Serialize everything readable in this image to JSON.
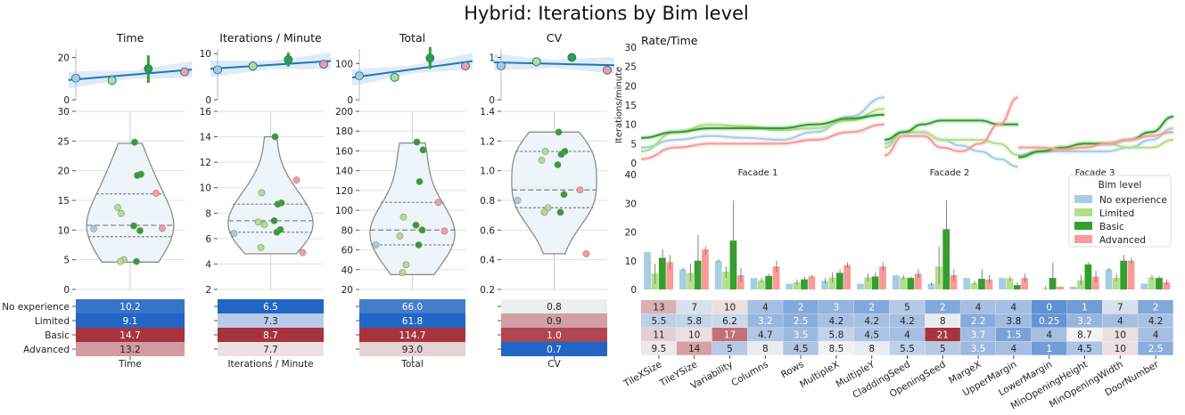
{
  "title": "Hybrid: Iterations by Bim level",
  "colors": {
    "no_experience": "#a6cee3",
    "limited": "#b2df8a",
    "basic": "#33a02c",
    "advanced": "#fb9a99",
    "trend": "#1f78b4",
    "band": "#dce9f5",
    "violin_fill": "#eef5fa",
    "violin_edge": "#8c8c8c",
    "heat_low": "#2166c4",
    "heat_mid": "#f4f4f4",
    "heat_high": "#a7333f"
  },
  "levels": [
    "No experience",
    "Limited",
    "Basic",
    "Advanced"
  ],
  "panels": [
    {
      "title": "Time",
      "xlabel": "Time",
      "trend_yticks": [
        "0",
        "20"
      ],
      "trend_ylim": [
        0,
        24
      ],
      "trend_means": [
        10.2,
        9.1,
        14.7,
        13.2
      ],
      "trend_ci": [
        [
          9.5,
          10.9
        ],
        [
          7,
          12
        ],
        [
          8,
          21
        ],
        [
          12.5,
          13.9
        ]
      ],
      "violin_ylim": [
        0,
        30
      ],
      "violin_yticks": [
        "0",
        "5",
        "10",
        "15",
        "20",
        "25",
        "30"
      ],
      "points": [
        {
          "level": 0,
          "y": 10.2
        },
        {
          "level": 1,
          "y": 12.8
        },
        {
          "level": 1,
          "y": 13.8
        },
        {
          "level": 1,
          "y": 5.0
        },
        {
          "level": 1,
          "y": 4.7
        },
        {
          "level": 2,
          "y": 24.8
        },
        {
          "level": 2,
          "y": 19.4
        },
        {
          "level": 2,
          "y": 19.2
        },
        {
          "level": 2,
          "y": 10.7
        },
        {
          "level": 2,
          "y": 9.9
        },
        {
          "level": 2,
          "y": 4.7
        },
        {
          "level": 3,
          "y": 16.2
        },
        {
          "level": 3,
          "y": 10.3
        }
      ],
      "violin_range": [
        4.6,
        24.6
      ],
      "quartiles": [
        8.9,
        10.8,
        16.1
      ],
      "heat_values": [
        "10.2",
        "9.1",
        "14.7",
        "13.2"
      ],
      "heat_levels": [
        0.05,
        0.0,
        1.0,
        0.73
      ]
    },
    {
      "title": "Iterations / Minute",
      "xlabel": "Iterations / Minute",
      "trend_yticks": [
        "0",
        "10"
      ],
      "trend_ylim": [
        0,
        11
      ],
      "trend_means": [
        6.5,
        7.3,
        8.7,
        7.7
      ],
      "trend_ci": [
        [
          6.1,
          6.9
        ],
        [
          6.2,
          8.4
        ],
        [
          7.2,
          10.2
        ],
        [
          7.2,
          8.2
        ]
      ],
      "violin_ylim": [
        2,
        16
      ],
      "violin_yticks": [
        "2",
        "4",
        "6",
        "8",
        "10",
        "12",
        "14",
        "16"
      ],
      "points": [
        {
          "level": 0,
          "y": 6.4
        },
        {
          "level": 1,
          "y": 9.6
        },
        {
          "level": 1,
          "y": 7.3
        },
        {
          "level": 1,
          "y": 7.1
        },
        {
          "level": 1,
          "y": 5.3
        },
        {
          "level": 2,
          "y": 14.0
        },
        {
          "level": 2,
          "y": 8.8
        },
        {
          "level": 2,
          "y": 8.7
        },
        {
          "level": 2,
          "y": 7.4
        },
        {
          "level": 2,
          "y": 6.7
        },
        {
          "level": 2,
          "y": 6.5
        },
        {
          "level": 3,
          "y": 10.6
        },
        {
          "level": 3,
          "y": 4.9
        }
      ],
      "violin_range": [
        4.8,
        14.0
      ],
      "quartiles": [
        6.5,
        7.4,
        8.7
      ],
      "heat_values": [
        "6.5",
        "7.3",
        "8.7",
        "7.7"
      ],
      "heat_levels": [
        0.0,
        0.36,
        1.0,
        0.55
      ]
    },
    {
      "title": "Total",
      "xlabel": "Total",
      "trend_yticks": [
        "0",
        "100"
      ],
      "trend_ylim": [
        0,
        140
      ],
      "trend_means": [
        66.0,
        61.8,
        114.7,
        93.0
      ],
      "trend_ci": [
        [
          60,
          72
        ],
        [
          50,
          75
        ],
        [
          85,
          145
        ],
        [
          88,
          98
        ]
      ],
      "violin_ylim": [
        20,
        200
      ],
      "violin_yticks": [
        "20",
        "40",
        "60",
        "80",
        "100",
        "120",
        "140",
        "160",
        "180",
        "200"
      ],
      "points": [
        {
          "level": 0,
          "y": 65
        },
        {
          "level": 1,
          "y": 93
        },
        {
          "level": 1,
          "y": 74
        },
        {
          "level": 1,
          "y": 45
        },
        {
          "level": 1,
          "y": 37
        },
        {
          "level": 2,
          "y": 169
        },
        {
          "level": 2,
          "y": 161
        },
        {
          "level": 2,
          "y": 129
        },
        {
          "level": 2,
          "y": 85
        },
        {
          "level": 2,
          "y": 80
        },
        {
          "level": 2,
          "y": 65
        },
        {
          "level": 3,
          "y": 108
        },
        {
          "level": 3,
          "y": 79
        }
      ],
      "violin_range": [
        35,
        168
      ],
      "quartiles": [
        65,
        80,
        108
      ],
      "heat_values": [
        "66.0",
        "61.8",
        "114.7",
        "93.0"
      ],
      "heat_levels": [
        0.08,
        0.0,
        1.0,
        0.59
      ]
    },
    {
      "title": "CV",
      "xlabel": "CV",
      "trend_yticks": [
        "0",
        "1"
      ],
      "trend_ylim": [
        0,
        1.2
      ],
      "trend_means": [
        0.8,
        0.9,
        1.0,
        0.7
      ],
      "trend_ci": [
        [
          0.75,
          0.85
        ],
        [
          0.84,
          0.96
        ],
        [
          0.92,
          1.08
        ],
        [
          0.65,
          0.75
        ]
      ],
      "violin_ylim": [
        0.2,
        1.4
      ],
      "violin_yticks": [
        "0.2",
        "0.4",
        "0.6",
        "0.8",
        "1.0",
        "1.2",
        "1.4"
      ],
      "points": [
        {
          "level": 0,
          "y": 0.8
        },
        {
          "level": 1,
          "y": 1.13
        },
        {
          "level": 1,
          "y": 1.07
        },
        {
          "level": 1,
          "y": 0.75
        },
        {
          "level": 1,
          "y": 0.72
        },
        {
          "level": 2,
          "y": 1.26
        },
        {
          "level": 2,
          "y": 1.13
        },
        {
          "level": 2,
          "y": 1.11
        },
        {
          "level": 2,
          "y": 1.04
        },
        {
          "level": 2,
          "y": 0.84
        },
        {
          "level": 2,
          "y": 0.72
        },
        {
          "level": 3,
          "y": 0.87
        },
        {
          "level": 3,
          "y": 0.44
        }
      ],
      "violin_range": [
        0.44,
        1.26
      ],
      "quartiles": [
        0.75,
        0.87,
        1.13
      ],
      "heat_values": [
        "0.8",
        "0.9",
        "1.0",
        "0.7"
      ],
      "heat_levels": [
        0.48,
        0.72,
        0.95,
        0.0
      ]
    }
  ],
  "rate_chart": {
    "title": "Rate/Time",
    "ylabel": "Iterations/minute",
    "ylim": [
      0,
      30
    ],
    "yticks": [
      "0",
      "5",
      "10",
      "15",
      "20",
      "25",
      "30"
    ],
    "facets": [
      "Facade 1",
      "Facade 2",
      "Facade 3"
    ],
    "curves": [
      [
        {
          "level": 0,
          "y": [
            4,
            6,
            7,
            6.5,
            6,
            8,
            12,
            17
          ]
        },
        {
          "level": 1,
          "y": [
            3,
            8,
            10,
            9.5,
            8.5,
            9,
            11,
            14
          ]
        },
        {
          "level": 2,
          "y": [
            6.5,
            8,
            9,
            9,
            9,
            10,
            11.5,
            12.5
          ]
        },
        {
          "level": 3,
          "y": [
            1,
            4,
            5,
            5,
            5,
            6,
            8,
            10
          ]
        }
      ],
      [
        {
          "level": 0,
          "y": [
            5,
            8,
            8,
            6,
            4.5,
            3,
            1,
            -1
          ]
        },
        {
          "level": 1,
          "y": [
            4,
            8,
            8,
            6,
            6,
            6,
            5,
            2
          ]
        },
        {
          "level": 2,
          "y": [
            6,
            8,
            10,
            11,
            11,
            11,
            10,
            10
          ]
        },
        {
          "level": 3,
          "y": [
            2,
            7,
            7,
            4,
            3,
            5,
            10,
            17
          ]
        }
      ],
      [
        {
          "level": 0,
          "y": [
            2,
            3,
            3,
            3,
            3,
            4,
            6,
            9
          ]
        },
        {
          "level": 1,
          "y": [
            1.5,
            3,
            4,
            5,
            5,
            4,
            4,
            6
          ]
        },
        {
          "level": 2,
          "y": [
            1.5,
            3,
            4,
            5,
            5,
            6,
            8,
            12
          ]
        },
        {
          "level": 3,
          "y": [
            4,
            4,
            3.5,
            4,
            5,
            6,
            7,
            8
          ]
        }
      ]
    ]
  },
  "param_chart": {
    "ylim": [
      0,
      40
    ],
    "yticks": [
      "0",
      "10",
      "20",
      "30",
      "40"
    ],
    "legend_title": "Bim level",
    "legend_position": "right",
    "categories": [
      "TileXSize",
      "TileYSize",
      "Variability",
      "Columns",
      "Rows",
      "MultipleX",
      "MultipleY",
      "CladdingSeed",
      "OpeningSeed",
      "MargeX",
      "UpperMargin",
      "LowerMargin",
      "MinOpeningHeight",
      "MinOpeningWidth",
      "DoorNumber"
    ],
    "series": [
      {
        "name": "No experience",
        "values": [
          13,
          7,
          10,
          4,
          2,
          3,
          2,
          5,
          2,
          4,
          4,
          0,
          1,
          7,
          2
        ]
      },
      {
        "name": "Limited",
        "values": [
          5.5,
          5.8,
          6.2,
          3.2,
          2.5,
          4.2,
          4.2,
          4.2,
          8,
          2.2,
          3.8,
          0.25,
          3.2,
          4,
          4.2
        ]
      },
      {
        "name": "Basic",
        "values": [
          11,
          10,
          17,
          4.7,
          3.5,
          5.8,
          4.5,
          4,
          21,
          3.7,
          1.5,
          4,
          8.7,
          10,
          4
        ]
      },
      {
        "name": "Advanced",
        "values": [
          9.5,
          14,
          5,
          8,
          4.5,
          8.5,
          8,
          5.5,
          5,
          3.5,
          4,
          1,
          4.5,
          10,
          2.5
        ]
      }
    ],
    "error_top": [
      [
        13,
        7.5,
        10.5,
        4,
        2,
        4,
        2,
        5,
        2.5,
        4,
        4,
        0,
        1,
        7.5,
        2
      ],
      [
        9,
        9,
        8,
        4,
        3.5,
        6,
        5.5,
        5,
        15,
        3,
        4.5,
        1,
        5,
        5.5,
        5
      ],
      [
        14,
        19,
        31,
        5.5,
        4.5,
        7,
        6,
        4.5,
        31,
        7,
        2.5,
        9.5,
        9.5,
        12,
        4.5
      ],
      [
        12,
        15,
        7.5,
        10,
        5,
        9.5,
        9.5,
        7,
        7,
        5,
        5.5,
        1,
        6.5,
        11,
        3.5
      ]
    ],
    "error_bottom": [
      [
        13,
        6.5,
        9.5,
        4,
        2,
        2,
        2,
        5,
        1.5,
        4,
        4,
        0,
        1,
        6.5,
        2
      ],
      [
        2,
        3,
        4,
        2.5,
        1.5,
        2.5,
        3,
        3.5,
        2,
        1.5,
        3,
        0,
        1.5,
        3,
        3.5
      ],
      [
        8,
        3,
        6,
        4,
        2.5,
        4.5,
        3,
        3.5,
        14,
        1,
        0.5,
        0,
        8,
        8,
        3.5
      ],
      [
        7,
        12,
        2.5,
        6,
        4,
        7.5,
        6.5,
        4,
        3,
        2,
        2.5,
        1,
        2.5,
        9,
        1.5
      ]
    ],
    "heat_rows": [
      [
        "13",
        "7",
        "10",
        "4",
        "2",
        "3",
        "2",
        "5",
        "2",
        "4",
        "4",
        "0",
        "1",
        "7",
        "2"
      ],
      [
        "5.5",
        "5.8",
        "6.2",
        "3.2",
        "2.5",
        "4.2",
        "4.2",
        "4.2",
        "8",
        "2.2",
        "3.8",
        "0.25",
        "3.2",
        "4",
        "4.2"
      ],
      [
        "11",
        "10",
        "17",
        "4.7",
        "3.5",
        "5.8",
        "4.5",
        "4",
        "21",
        "3.7",
        "1.5",
        "4",
        "8.7",
        "10",
        "4"
      ],
      [
        "9.5",
        "14",
        "5",
        "8",
        "4.5",
        "8.5",
        "8",
        "5.5",
        "5",
        "3.5",
        "4",
        "1",
        "4.5",
        "10",
        "2.5"
      ]
    ]
  }
}
